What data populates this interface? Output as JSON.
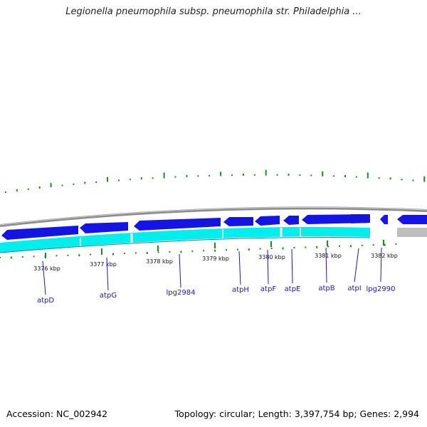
{
  "header": {
    "title": "Legionella pneumophila subsp. pneumophila str. Philadelphia ..."
  },
  "footer": {
    "accession": "Accession: NC_002942",
    "summary": "Topology: circular; Length: 3,397,754 bp; Genes: 2,994"
  },
  "map": {
    "colors": {
      "backbone": "#8c8c8c",
      "forward_genes": "#1414e6",
      "reverse_genes": "#00eeee",
      "gap_segment": "#bfbfbf",
      "gc_skew_ticks": "#1e8c1e",
      "gene_label": "#1a1aa8",
      "tick_label": "#111111"
    },
    "scale_ticks": [
      {
        "label": "3376 kbp"
      },
      {
        "label": "3377 kbp"
      },
      {
        "label": "3378 kbp"
      },
      {
        "label": "3379 kbp"
      },
      {
        "label": "3380 kbp"
      },
      {
        "label": "3381 kbp"
      },
      {
        "label": "3382 kbp"
      }
    ],
    "gene_labels": [
      {
        "name": "atpD"
      },
      {
        "name": "atpG"
      },
      {
        "name": "lpg2984"
      },
      {
        "name": "atpH"
      },
      {
        "name": "atpF"
      },
      {
        "name": "atpE"
      },
      {
        "name": "atpB"
      },
      {
        "name": "atpI"
      },
      {
        "name": "lpg2990"
      }
    ]
  }
}
